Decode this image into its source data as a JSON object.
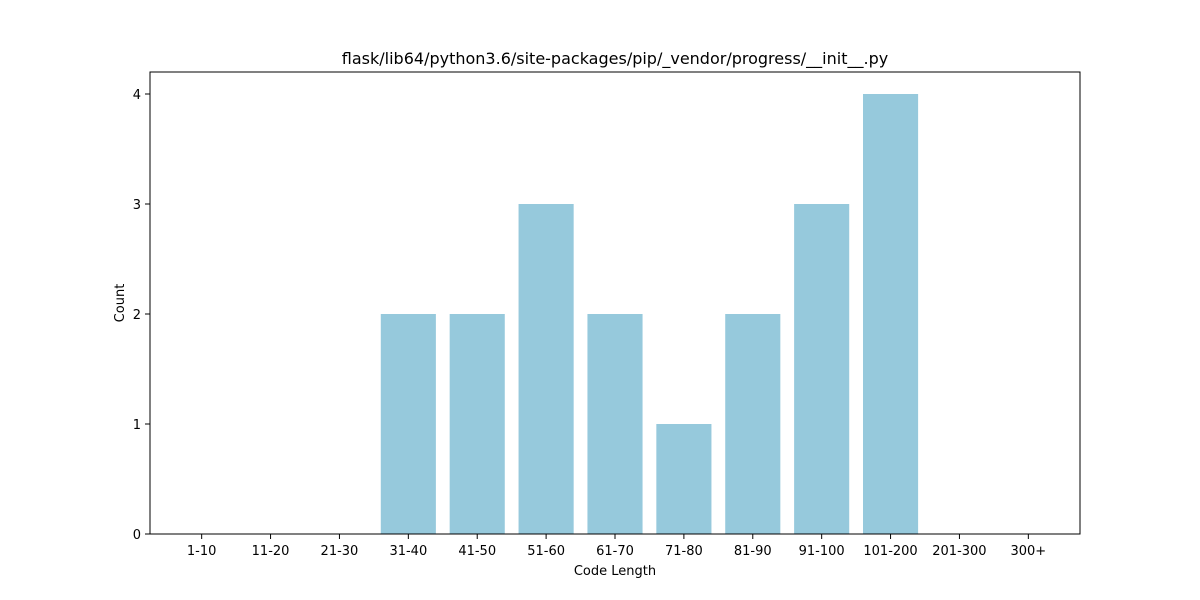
{
  "chart_data": {
    "type": "bar",
    "title": "flask/lib64/python3.6/site-packages/pip/_vendor/progress/__init__.py",
    "xlabel": "Code Length",
    "ylabel": "Count",
    "categories": [
      "1-10",
      "11-20",
      "21-30",
      "31-40",
      "41-50",
      "51-60",
      "61-70",
      "71-80",
      "81-90",
      "91-100",
      "101-200",
      "201-300",
      "300+"
    ],
    "values": [
      0,
      0,
      0,
      2,
      2,
      3,
      2,
      1,
      2,
      3,
      4,
      0,
      0
    ],
    "ylim": [
      0,
      4.2
    ],
    "yticks": [
      0,
      1,
      2,
      3,
      4
    ],
    "bar_color": "#96c9dc",
    "grid": false,
    "legend": false
  }
}
